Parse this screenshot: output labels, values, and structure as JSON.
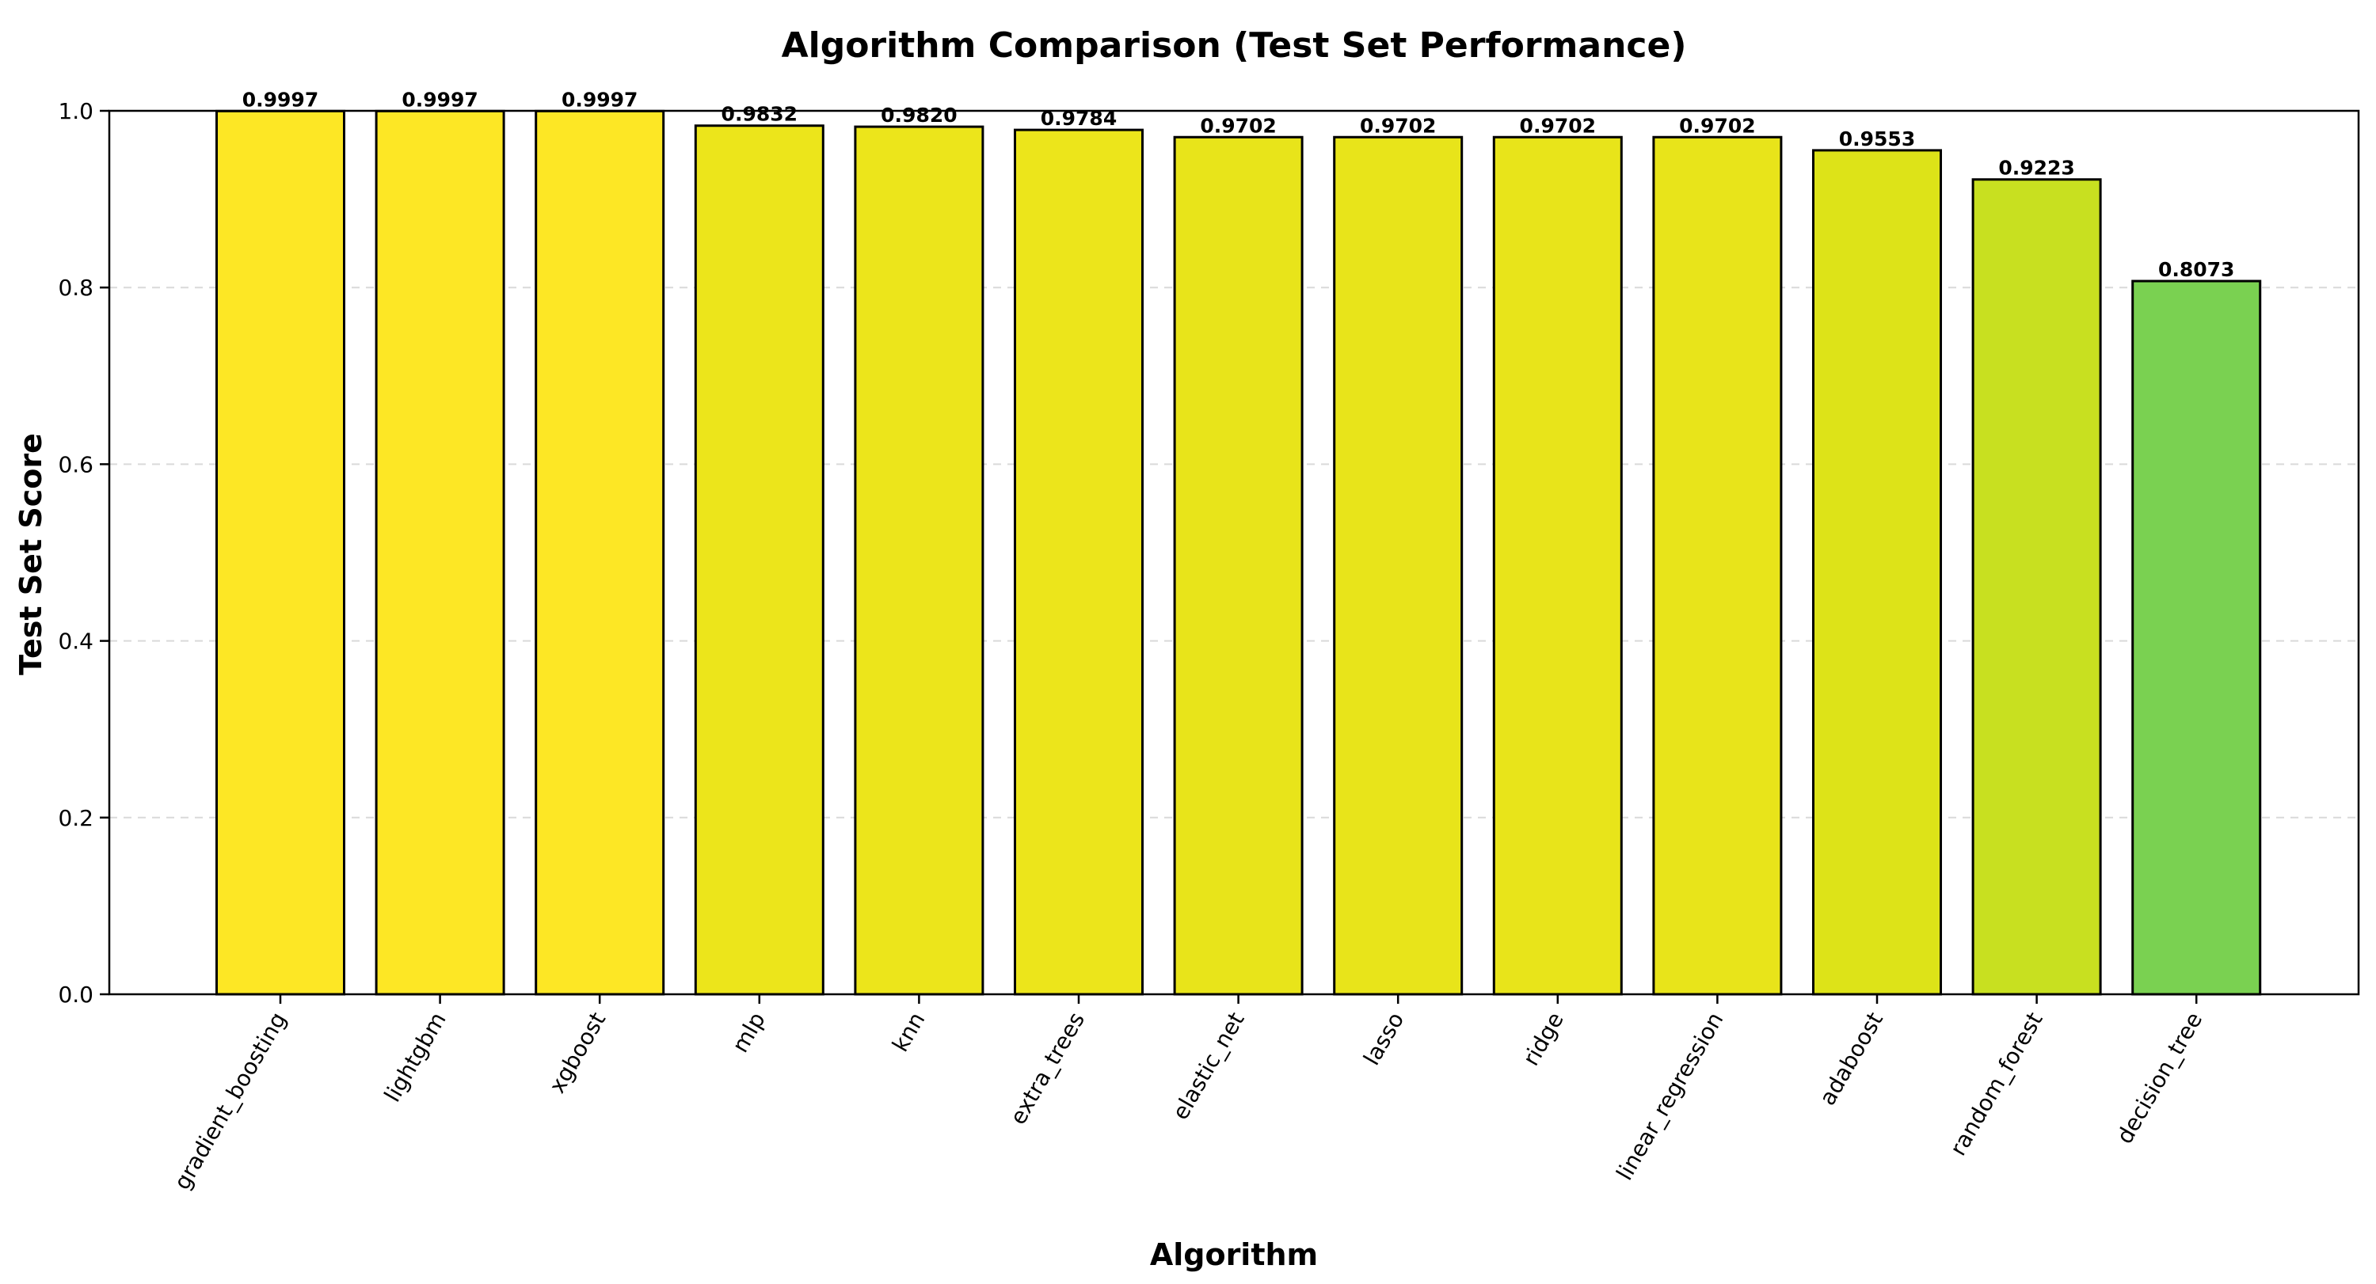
{
  "chart_data": {
    "type": "bar",
    "title": "Algorithm Comparison (Test Set Performance)",
    "xlabel": "Algorithm",
    "ylabel": "Test Set Score",
    "ylim": [
      0,
      1.0
    ],
    "yticks": [
      0.0,
      0.2,
      0.4,
      0.6,
      0.8,
      1.0
    ],
    "ytick_labels": [
      "0.0",
      "0.2",
      "0.4",
      "0.6",
      "0.8",
      "1.0"
    ],
    "grid": "y-dashed",
    "categories": [
      "gradient_boosting",
      "lightgbm",
      "xgboost",
      "mlp",
      "knn",
      "extra_trees",
      "elastic_net",
      "lasso",
      "ridge",
      "linear_regression",
      "adaboost",
      "random_forest",
      "decision_tree"
    ],
    "values": [
      0.9997,
      0.9997,
      0.9997,
      0.9832,
      0.982,
      0.9784,
      0.9702,
      0.9702,
      0.9702,
      0.9702,
      0.9553,
      0.9223,
      0.8073
    ],
    "value_labels": [
      "0.9997",
      "0.9997",
      "0.9997",
      "0.9832",
      "0.9820",
      "0.9784",
      "0.9702",
      "0.9702",
      "0.9702",
      "0.9702",
      "0.9553",
      "0.9223",
      "0.8073"
    ],
    "bar_colors": [
      "#fde725",
      "#fde725",
      "#fde725",
      "#ece51b",
      "#ece51b",
      "#ece51b",
      "#e8e41a",
      "#e8e41a",
      "#e8e41a",
      "#e8e41a",
      "#dde318",
      "#c8e020",
      "#7ad151"
    ],
    "bar_edge_color": "#000000"
  }
}
